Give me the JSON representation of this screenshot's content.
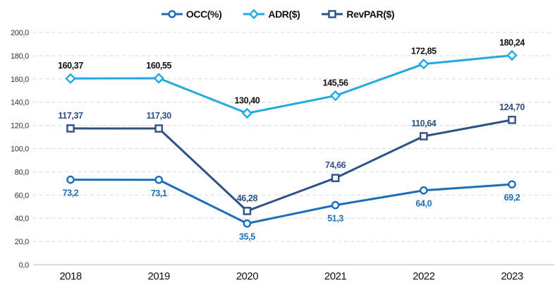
{
  "chart_data": {
    "type": "line",
    "title": "",
    "categories": [
      "2018",
      "2019",
      "2020",
      "2021",
      "2022",
      "2023"
    ],
    "series": [
      {
        "name": "OCC(%)",
        "marker": "circle",
        "color": "#1B6FBA",
        "label_color": "#1B6FBA",
        "label_position": "below",
        "values": [
          73.2,
          73.1,
          35.5,
          51.3,
          64.0,
          69.2
        ],
        "labels": [
          "73,2",
          "73,1",
          "35,5",
          "51,3",
          "64,0",
          "69,2"
        ]
      },
      {
        "name": "ADR($)",
        "marker": "diamond",
        "color": "#22A9E0",
        "label_color": "#111111",
        "label_position": "above",
        "values": [
          160.37,
          160.55,
          130.4,
          145.56,
          172.85,
          180.24
        ],
        "labels": [
          "160,37",
          "160,55",
          "130,40",
          "145,56",
          "172,85",
          "180,24"
        ]
      },
      {
        "name": "RevPAR($)",
        "marker": "square",
        "color": "#2F5185",
        "label_color": "#2F5185",
        "label_position": "above",
        "values": [
          117.37,
          117.3,
          46.28,
          74.66,
          110.64,
          124.7
        ],
        "labels": [
          "117,37",
          "117,30",
          "46,28",
          "74,66",
          "110,64",
          "124,70"
        ]
      }
    ],
    "y_axis": {
      "min": 0,
      "max": 200,
      "step": 20,
      "tick_labels": [
        "0,0",
        "20,0",
        "40,0",
        "60,0",
        "80,0",
        "100,0",
        "120,0",
        "140,0",
        "160,0",
        "180,0",
        "200,0"
      ]
    },
    "x_axis_label": "",
    "y_axis_label": "",
    "grid": "horizontal-dashed",
    "legend_position": "top-center",
    "colors": {
      "grid": "#d9d9d9",
      "axis": "#c4c4c4",
      "tick_text": "#333333",
      "year_text": "#111111"
    }
  }
}
